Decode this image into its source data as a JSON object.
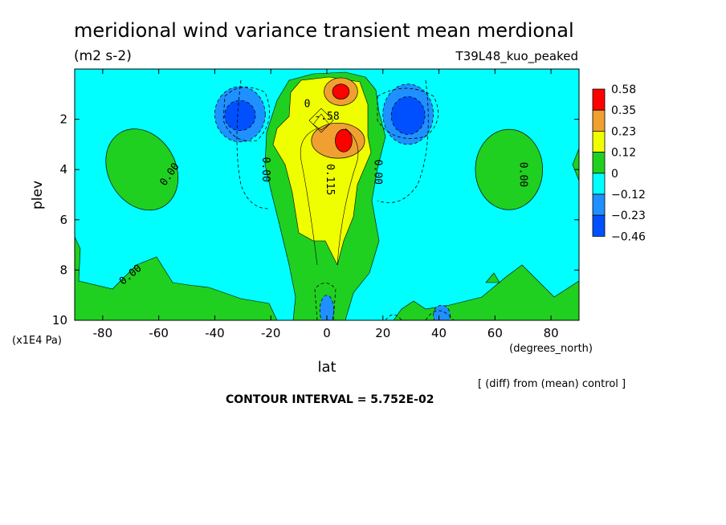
{
  "chart_data": {
    "type": "heatmap",
    "title": "meridional wind variance transient mean merdional",
    "units": "(m2 s-2)",
    "run_label": "T39L48_kuo_peaked",
    "xlabel": "lat",
    "x_units": "(degrees_north)",
    "ylabel": "plev",
    "y_units": "(x1E4 Pa)",
    "footnote": "[ (diff) from (mean) control ]",
    "contour_interval": "CONTOUR INTERVAL = 5.752E-02",
    "xlim": [
      -90,
      90
    ],
    "ylim": [
      10,
      0
    ],
    "x_ticks": [
      -80,
      -60,
      -40,
      -20,
      0,
      20,
      40,
      60,
      80
    ],
    "x_tick_labels": [
      "-80",
      "-60",
      "-40",
      "-20",
      "0",
      "20",
      "40",
      "60",
      "80"
    ],
    "y_ticks": [
      2,
      4,
      6,
      8,
      10
    ],
    "y_tick_labels": [
      "2",
      "4",
      "6",
      "8",
      "10"
    ],
    "colorbar": {
      "labels": [
        "0.58",
        "0.35",
        "0.23",
        "0.12",
        "0",
        "−0.12",
        "−0.23",
        "−0.46"
      ],
      "colors": [
        "#ff0000",
        "#f0a030",
        "#f0ff00",
        "#20d020",
        "#00ffff",
        "#1e90ff",
        "#0050ff"
      ]
    },
    "contour_labels": [
      {
        "text": "0.00",
        "lat": -56,
        "plev": 4.2,
        "angle": -55
      },
      {
        "text": "0.00",
        "lat": -22,
        "plev": 4.0,
        "angle": 90
      },
      {
        "text": "0.115",
        "lat": 1,
        "plev": 4.4,
        "angle": 90
      },
      {
        "text": "0.00",
        "lat": 18,
        "plev": 4.1,
        "angle": 90
      },
      {
        "text": "0.00",
        "lat": 70,
        "plev": 4.2,
        "angle": 90
      },
      {
        "text": "0.00",
        "lat": -70,
        "plev": 8.2,
        "angle": -40
      },
      {
        "text": "-.58",
        "lat": 0,
        "plev": 1.9,
        "angle": 0
      },
      {
        "text": "0",
        "lat": -7,
        "plev": 1.4,
        "angle": 0
      }
    ],
    "features": [
      {
        "level": 0.0,
        "lat": -66,
        "plev": 4.0,
        "rx": 12,
        "ry": 1.7,
        "rot": -30
      },
      {
        "level": 0.0,
        "lat": 65,
        "plev": 4.0,
        "rx": 12,
        "ry": 1.6,
        "rot": 0
      },
      {
        "level": -0.12,
        "lat": -31,
        "plev": 1.8,
        "rx": 9,
        "ry": 1.1,
        "rot": 0
      },
      {
        "level": -0.23,
        "lat": -31,
        "plev": 1.85,
        "rx": 5.5,
        "ry": 0.6,
        "rot": 0
      },
      {
        "level": -0.12,
        "lat": 29,
        "plev": 1.8,
        "rx": 9,
        "ry": 1.2,
        "rot": 0
      },
      {
        "level": -0.23,
        "lat": 29,
        "plev": 1.85,
        "rx": 6,
        "ry": 0.75,
        "rot": 0
      },
      {
        "level": 0.23,
        "lat": 5,
        "plev": 0.9,
        "rx": 6,
        "ry": 0.55,
        "rot": 0
      },
      {
        "level": 0.35,
        "lat": 5,
        "plev": 0.9,
        "rx": 3,
        "ry": 0.3,
        "rot": 0
      },
      {
        "level": 0.23,
        "lat": 4,
        "plev": 2.85,
        "rx": 9.5,
        "ry": 0.7,
        "rot": 0
      },
      {
        "level": 0.35,
        "lat": 6,
        "plev": 2.85,
        "rx": 3,
        "ry": 0.45,
        "rot": 0
      },
      {
        "level": -0.12,
        "lat": 0,
        "plev": 9.6,
        "rx": 2.5,
        "ry": 0.6,
        "rot": 0
      },
      {
        "level": -0.12,
        "lat": 41,
        "plev": 9.8,
        "rx": 3,
        "ry": 0.4,
        "rot": 0
      }
    ]
  }
}
